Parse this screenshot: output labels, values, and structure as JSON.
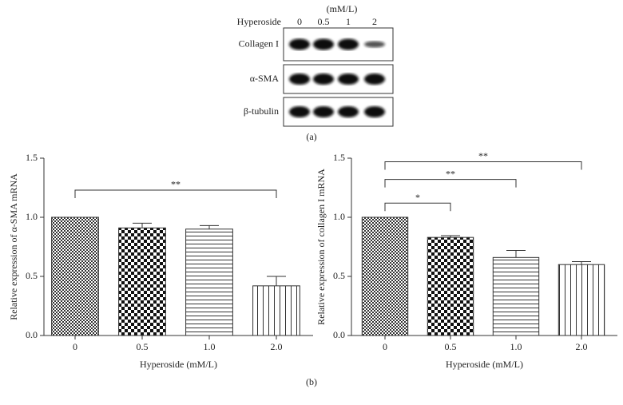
{
  "blot": {
    "treatment": "Hyperoside",
    "unit": "(mM/L)",
    "lanes": [
      "0",
      "0.5",
      "1",
      "2"
    ],
    "rows": [
      "Collagen I",
      "α-SMA",
      "β-tubulin"
    ],
    "panel": "(a)"
  },
  "panel_b": "(b)",
  "chart_data": [
    {
      "type": "bar",
      "ylabel": "Relative expression of α-SMA mRNA",
      "xlabel": "Hyperoside (mM/L)",
      "categories": [
        "0",
        "0.5",
        "1.0",
        "2.0"
      ],
      "values": [
        1.0,
        0.91,
        0.9,
        0.42
      ],
      "errors": [
        0,
        0.04,
        0.03,
        0.08
      ],
      "ylim": [
        0,
        1.5
      ],
      "yticks": [
        {
          "value": 0,
          "label": "0.0"
        },
        {
          "value": 0.5,
          "label": "0.5"
        },
        {
          "value": 1.0,
          "label": "1.0"
        },
        {
          "value": 1.5,
          "label": "1.5"
        }
      ],
      "annotations": [
        {
          "label": "**",
          "from": "0",
          "to": "2.0",
          "y": 1.23
        }
      ]
    },
    {
      "type": "bar",
      "ylabel": "Relative expression of collagen I mRNA",
      "xlabel": "Hyperoside (mM/L)",
      "categories": [
        "0",
        "0.5",
        "1.0",
        "2.0"
      ],
      "values": [
        1.0,
        0.83,
        0.66,
        0.6
      ],
      "errors": [
        0,
        0.015,
        0.06,
        0.025
      ],
      "ylim": [
        0,
        1.5
      ],
      "yticks": [
        {
          "value": 0,
          "label": "0.0"
        },
        {
          "value": 0.5,
          "label": "0.5"
        },
        {
          "value": 1.0,
          "label": "1.0"
        },
        {
          "value": 1.5,
          "label": "1.5"
        }
      ],
      "annotations": [
        {
          "label": "*",
          "from": "0",
          "to": "0.5",
          "y": 1.12
        },
        {
          "label": "**",
          "from": "0",
          "to": "1.0",
          "y": 1.32
        },
        {
          "label": "**",
          "from": "0",
          "to": "2.0",
          "y": 1.47
        }
      ]
    }
  ]
}
